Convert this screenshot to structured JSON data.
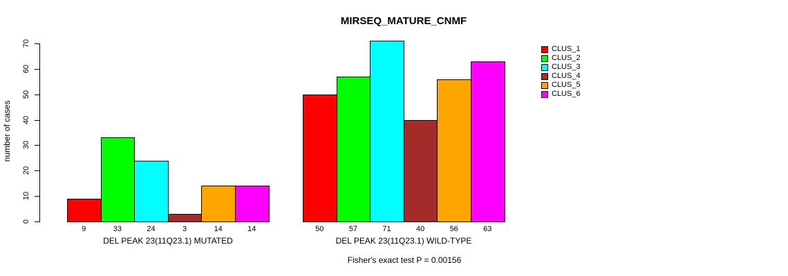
{
  "chart_data": {
    "type": "bar",
    "title": "MIRSEQ_MATURE_CNMF",
    "ylabel": "number of cases",
    "xlabel": "",
    "ylim": [
      0,
      70
    ],
    "yticks": [
      0,
      10,
      20,
      30,
      40,
      50,
      60,
      70
    ],
    "grid": false,
    "legend_position": "right",
    "categories": [
      "DEL PEAK 23(11Q23.1) MUTATED",
      "DEL PEAK 23(11Q23.1) WILD-TYPE"
    ],
    "series": [
      {
        "name": "CLUS_1",
        "color": "#FF0000",
        "values": [
          9,
          50
        ]
      },
      {
        "name": "CLUS_2",
        "color": "#00FF00",
        "values": [
          33,
          57
        ]
      },
      {
        "name": "CLUS_3",
        "color": "#00FFFF",
        "values": [
          24,
          71
        ]
      },
      {
        "name": "CLUS_4",
        "color": "#A52A2A",
        "values": [
          3,
          40
        ]
      },
      {
        "name": "CLUS_5",
        "color": "#FFA500",
        "values": [
          14,
          56
        ]
      },
      {
        "name": "CLUS_6",
        "color": "#FF00FF",
        "values": [
          14,
          63
        ]
      }
    ],
    "bar_value_labels": true,
    "annotation": "Fisher's exact test P = 0.00156"
  }
}
